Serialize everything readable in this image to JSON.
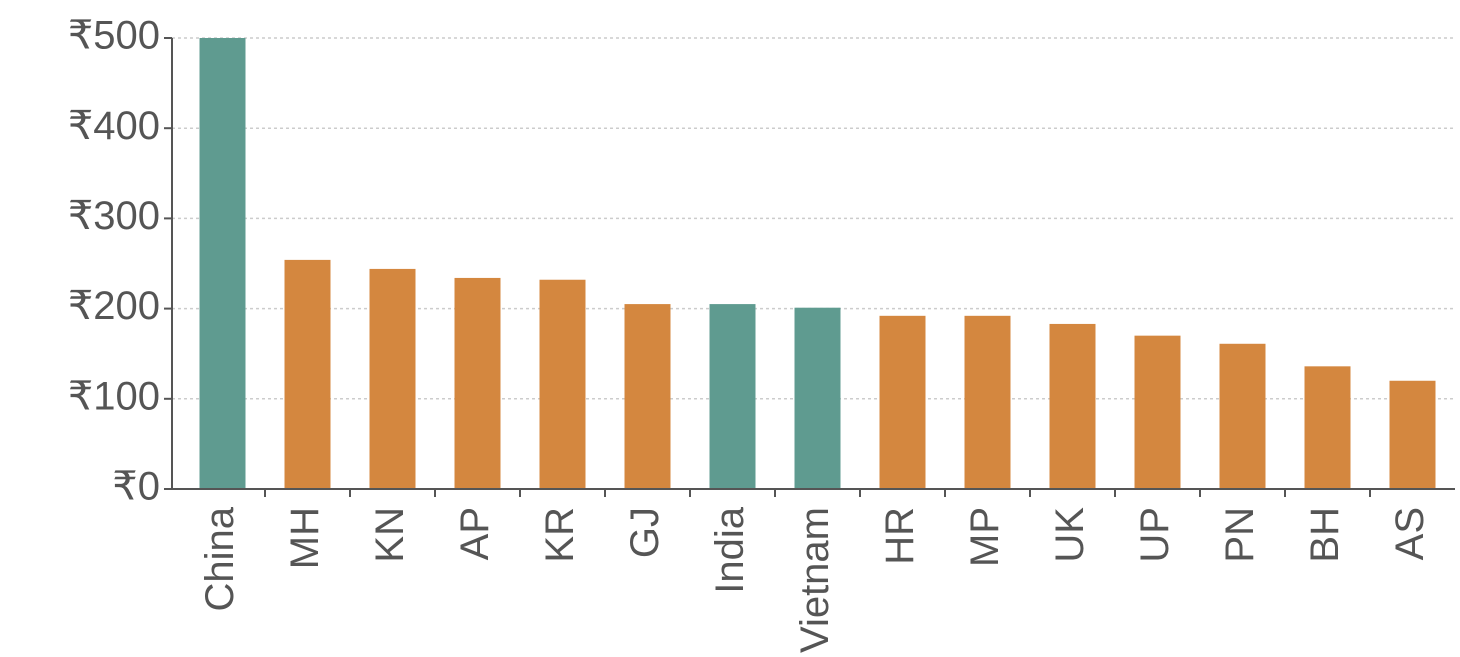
{
  "chart_data": {
    "type": "bar",
    "categories": [
      "China",
      "MH",
      "KN",
      "AP",
      "KR",
      "GJ",
      "India",
      "Vietnam",
      "HR",
      "MP",
      "UK",
      "UP",
      "PN",
      "BH",
      "AS"
    ],
    "values": [
      500,
      254,
      244,
      234,
      232,
      205,
      205,
      201,
      192,
      192,
      183,
      170,
      161,
      136,
      120
    ],
    "colors": [
      "#5f9b90",
      "#d4873f",
      "#d4873f",
      "#d4873f",
      "#d4873f",
      "#d4873f",
      "#5f9b90",
      "#5f9b90",
      "#d4873f",
      "#d4873f",
      "#d4873f",
      "#d4873f",
      "#d4873f",
      "#d4873f",
      "#d4873f"
    ],
    "ylim": [
      0,
      500
    ],
    "yticks": [
      {
        "value": 0,
        "label": "₹0"
      },
      {
        "value": 100,
        "label": "₹100"
      },
      {
        "value": 200,
        "label": "₹200"
      },
      {
        "value": 300,
        "label": "₹300"
      },
      {
        "value": 400,
        "label": "₹400"
      },
      {
        "value": 500,
        "label": "₹500"
      }
    ],
    "grid": true
  }
}
